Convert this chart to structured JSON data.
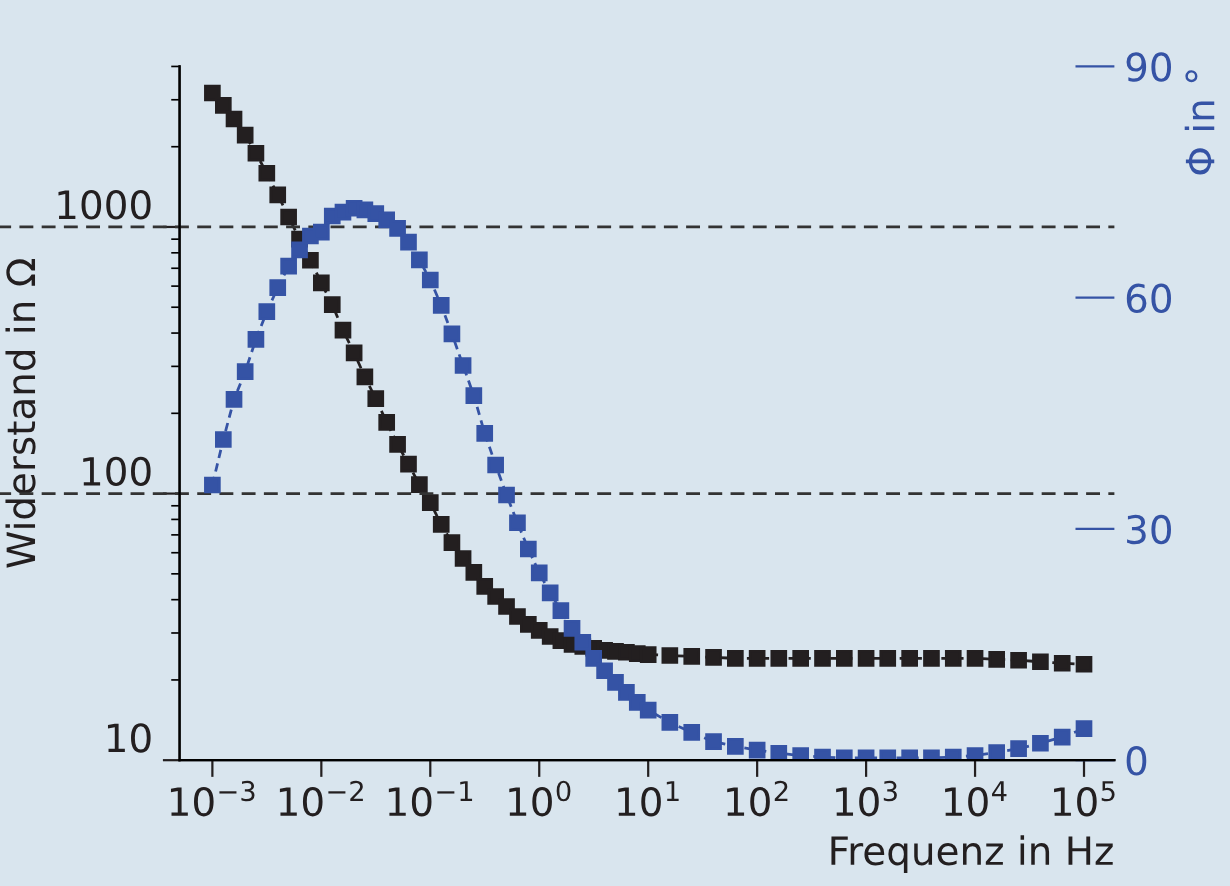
{
  "chart_data": {
    "type": "line",
    "xlabel": "Frequenz in Hz",
    "ylabel": "Widerstand in Ω",
    "y2label": "Φ in °",
    "log": "xy",
    "grid": false,
    "marker": "square",
    "line_style": "dashed",
    "x": [
      0.001,
      0.00126,
      0.00158,
      0.002,
      0.00251,
      0.00316,
      0.00398,
      0.00501,
      0.00631,
      0.00794,
      0.01,
      0.0126,
      0.0158,
      0.02,
      0.0251,
      0.0316,
      0.0398,
      0.0501,
      0.0631,
      0.0794,
      0.1,
      0.126,
      0.158,
      0.2,
      0.251,
      0.316,
      0.398,
      0.501,
      0.631,
      0.794,
      1,
      1.26,
      1.58,
      2,
      2.51,
      3.16,
      3.98,
      5.01,
      6.31,
      7.94,
      10,
      15.8,
      25.1,
      39.8,
      63.1,
      100,
      158,
      251,
      398,
      631,
      1000,
      1580,
      2510,
      3980,
      6310,
      10000,
      15800,
      25100,
      39800,
      63100,
      100000
    ],
    "series": [
      {
        "color": "#231f20",
        "values": [
          3180,
          2860,
          2540,
          2210,
          1890,
          1590,
          1320,
          1090,
          900,
          750,
          617,
          511,
          410,
          337,
          274,
          227,
          185,
          153,
          129,
          108,
          92.5,
          76.6,
          65.5,
          57.1,
          50.6,
          44.9,
          41.1,
          37.7,
          34.6,
          32.3,
          30.7,
          29.1,
          28.1,
          27.2,
          26.7,
          26.3,
          25.8,
          25.6,
          25.4,
          25.1,
          24.9,
          24.7,
          24.5,
          24.3,
          24.1,
          24.1,
          24.1,
          24.1,
          24.1,
          24.1,
          24.1,
          24.1,
          24.1,
          24.1,
          24.1,
          24.1,
          23.9,
          23.7,
          23.4,
          23.1,
          22.9
        ]
      },
      {
        "color": "#3553a5",
        "axis": "y2",
        "values": [
          35.7,
          41.6,
          46.8,
          50.4,
          54.6,
          58.2,
          61.3,
          64.1,
          66.2,
          68.0,
          68.5,
          70.6,
          71.1,
          71.6,
          71.4,
          70.9,
          70.1,
          69.0,
          67.2,
          64.9,
          62.3,
          59.0,
          55.3,
          51.2,
          47.3,
          42.4,
          38.3,
          34.4,
          30.8,
          27.4,
          24.3,
          21.7,
          19.4,
          17.1,
          15.3,
          13.2,
          11.6,
          10.1,
          8.8,
          7.5,
          6.5,
          4.9,
          3.6,
          2.4,
          1.8,
          1.3,
          0.9,
          0.6,
          0.4,
          0.3,
          0.3,
          0.3,
          0.3,
          0.3,
          0.4,
          0.6,
          1.0,
          1.5,
          2.2,
          3.0,
          4.1
        ]
      }
    ],
    "xlim": [
      0.0005,
      190000
    ],
    "xticks": [
      {
        "value": 0.001,
        "label": "10$^{−3}$"
      },
      {
        "value": 0.01,
        "label": "10$^{−2}$"
      },
      {
        "value": 0.1,
        "label": "10$^{−1}$"
      },
      {
        "value": 1,
        "label": "10$^{0}$"
      },
      {
        "value": 10,
        "label": "10$^{1}$"
      },
      {
        "value": 100,
        "label": "10$^{2}$"
      },
      {
        "value": 1000,
        "label": "10$^{3}$"
      },
      {
        "value": 10000,
        "label": "10$^{4}$"
      },
      {
        "value": 100000,
        "label": "10$^{5}$"
      }
    ],
    "ylim": [
      10,
      4000
    ],
    "yticks": [
      10,
      100,
      1000
    ],
    "y2lim": [
      0,
      90
    ],
    "y2ticks": [
      0,
      30,
      60,
      90
    ],
    "ref_lines": [
      {
        "axis": "y",
        "value": 100,
        "color": "#333333",
        "line_style": "dashed"
      },
      {
        "axis": "y",
        "value": 1000,
        "color": "#333333",
        "line_style": "dashed"
      }
    ]
  }
}
